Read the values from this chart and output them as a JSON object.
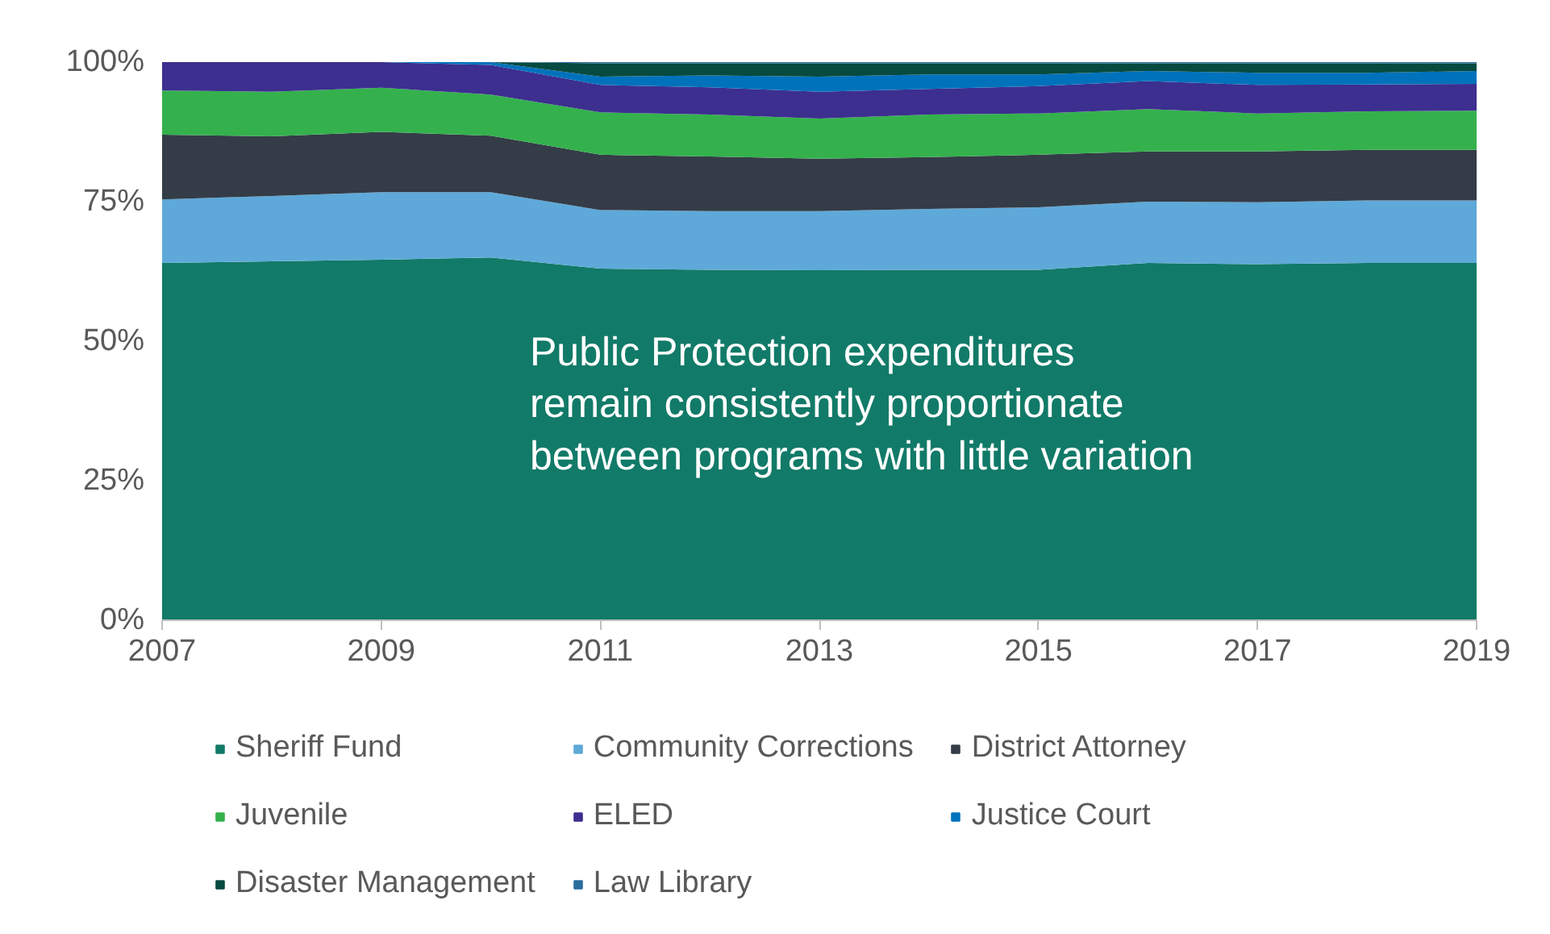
{
  "chart_data": {
    "type": "area",
    "stacked": true,
    "x": [
      2007,
      2008,
      2009,
      2010,
      2011,
      2012,
      2013,
      2014,
      2015,
      2016,
      2017,
      2018,
      2019
    ],
    "series": [
      {
        "name": "Sheriff Fund",
        "color": "#127a68",
        "values": [
          64,
          64.3,
          64.6,
          65,
          63,
          62.8,
          62.7,
          62.8,
          62.8,
          64,
          63.8,
          64,
          64
        ]
      },
      {
        "name": "Community Corrections",
        "color": "#5ea9d9",
        "values": [
          11.4,
          11.7,
          12.1,
          11.7,
          10.5,
          10.5,
          10.6,
          10.9,
          11.2,
          11,
          11.1,
          11.2,
          11.2
        ]
      },
      {
        "name": "District Attorney",
        "color": "#343c47",
        "values": [
          11.6,
          10.7,
          10.8,
          10.1,
          9.9,
          9.8,
          9.4,
          9.3,
          9.4,
          9,
          9.1,
          9.1,
          9.1
        ]
      },
      {
        "name": "Juvenile",
        "color": "#34b14d",
        "values": [
          7.9,
          8,
          7.9,
          7.4,
          7.6,
          7.5,
          7.2,
          7.6,
          7.4,
          7.6,
          6.8,
          6.9,
          7
        ]
      },
      {
        "name": "ELED",
        "color": "#3c2f8f",
        "values": [
          5.1,
          5.3,
          4.6,
          5.3,
          4.9,
          4.9,
          4.8,
          4.6,
          4.9,
          5,
          5.1,
          4.8,
          4.8
        ]
      },
      {
        "name": "Justice Court",
        "color": "#0072bc",
        "values": [
          0,
          0,
          0,
          0.5,
          1.5,
          2.1,
          2.7,
          2.6,
          2.1,
          1.8,
          2.2,
          2.1,
          2.3
        ]
      },
      {
        "name": "Disaster Management",
        "color": "#074a3f",
        "values": [
          0,
          0,
          0,
          0,
          2.4,
          2.2,
          2.4,
          2,
          2,
          1.4,
          1.7,
          1.7,
          1.4
        ]
      },
      {
        "name": "Law Library",
        "color": "#2a6e9e",
        "values": [
          0,
          0,
          0,
          0,
          0.2,
          0.2,
          0.2,
          0.2,
          0.2,
          0.2,
          0.2,
          0.2,
          0.2
        ]
      }
    ],
    "xlim": [
      2007,
      2019
    ],
    "xticks": [
      2007,
      2009,
      2011,
      2013,
      2015,
      2017,
      2019
    ],
    "ylim": [
      0,
      100
    ],
    "yticks": [
      {
        "value": 0,
        "label": "0%"
      },
      {
        "value": 25,
        "label": "25%"
      },
      {
        "value": 50,
        "label": "50%"
      },
      {
        "value": 75,
        "label": "75%"
      },
      {
        "value": 100,
        "label": "100%"
      }
    ],
    "grid": false,
    "legend": "bottom",
    "annotations": [
      "Public Protection expenditures\nremain consistently proportionate\nbetween programs with little variation"
    ]
  }
}
